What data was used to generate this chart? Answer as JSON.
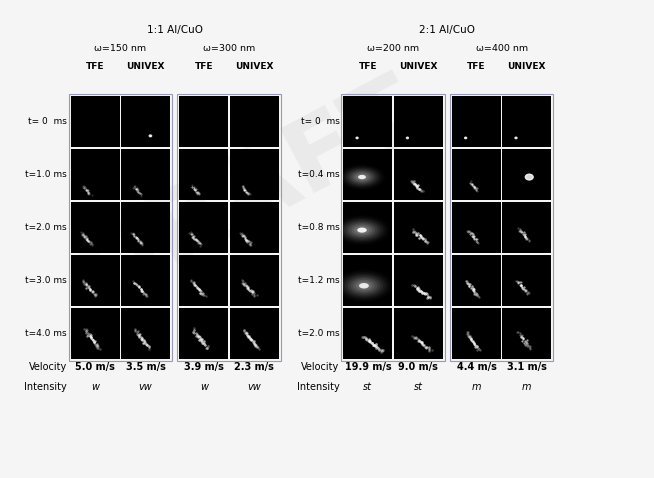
{
  "background_color": "#f5f5f5",
  "watermark_text": "DRAFT",
  "left_panel_title": "1:1 Al/CuO",
  "right_panel_title": "2:1 Al/CuO",
  "left_groups": [
    {
      "omega": "ω=150 nm",
      "cols": [
        "TFE",
        "UNIVEX"
      ]
    },
    {
      "omega": "ω=300 nm",
      "cols": [
        "TFE",
        "UNIVEX"
      ]
    }
  ],
  "right_groups": [
    {
      "omega": "ω=200 nm",
      "cols": [
        "TFE",
        "UNIVEX"
      ]
    },
    {
      "omega": "ω=400 nm",
      "cols": [
        "TFE",
        "UNIVEX"
      ]
    }
  ],
  "left_time_labels": [
    "t= 0  ms",
    "t=1.0 ms",
    "t=2.0 ms",
    "t=3.0 ms",
    "t=4.0 ms"
  ],
  "right_time_labels": [
    "t= 0  ms",
    "t=0.4 ms",
    "t=0.8 ms",
    "t=1.2 ms",
    "t=2.0 ms"
  ],
  "left_velocity_labels": [
    "5.0 m/s",
    "3.5 m/s",
    "3.9 m/s",
    "2.3 m/s"
  ],
  "left_intensity_labels": [
    "w",
    "vw",
    "w",
    "vw"
  ],
  "right_velocity_labels": [
    "19.9 m/s",
    "9.0 m/s",
    "4.4 m/s",
    "3.1 m/s"
  ],
  "right_intensity_labels": [
    "st",
    "st",
    "m",
    "m"
  ],
  "cell_bg": "#000000",
  "border_color": "#9999bb",
  "n_rows": 5
}
